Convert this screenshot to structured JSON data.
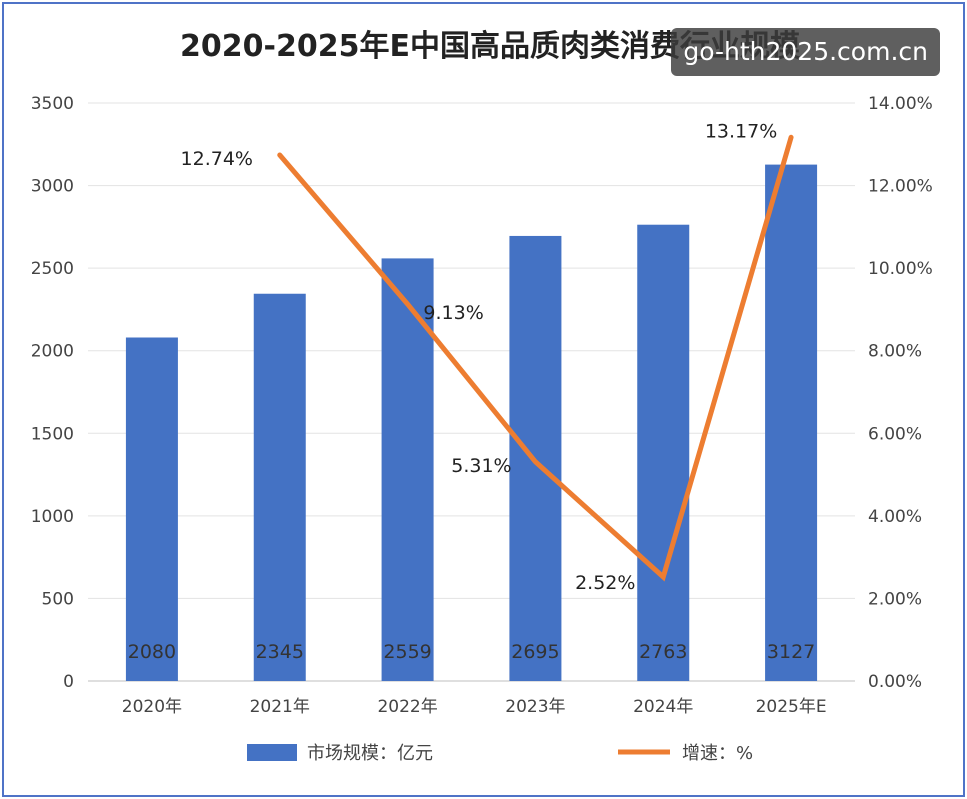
{
  "chart_data": {
    "type": "bar",
    "title": "2020-2025年E中国高品质肉类消费行业规模",
    "categories": [
      "2020年",
      "2021年",
      "2022年",
      "2023年",
      "2024年",
      "2025年E"
    ],
    "series": [
      {
        "name": "市场规模：亿元",
        "type": "bar",
        "axis": "left",
        "color": "#4472c4",
        "values": [
          2080,
          2345,
          2559,
          2695,
          2763,
          3127
        ],
        "labels": [
          "2080",
          "2345",
          "2559",
          "2695",
          "2763",
          "3127"
        ]
      },
      {
        "name": "增速：%",
        "type": "line",
        "axis": "right",
        "color": "#ed7d31",
        "values": [
          null,
          12.74,
          9.13,
          5.31,
          2.52,
          13.17
        ],
        "labels": [
          "",
          "12.74%",
          "9.13%",
          "5.31%",
          "2.52%",
          "13.17%"
        ]
      }
    ],
    "y_left": {
      "min": 0,
      "max": 3500,
      "ticks": [
        "0",
        "500",
        "1000",
        "1500",
        "2000",
        "2500",
        "3000",
        "3500"
      ]
    },
    "y_right": {
      "min": 0,
      "max": 14,
      "ticks": [
        "0.00%",
        "2.00%",
        "4.00%",
        "6.00%",
        "8.00%",
        "10.00%",
        "12.00%",
        "14.00%"
      ]
    },
    "grid": true,
    "legend_position": "bottom"
  },
  "watermark": {
    "text": "go-hth2025.com.cn"
  }
}
